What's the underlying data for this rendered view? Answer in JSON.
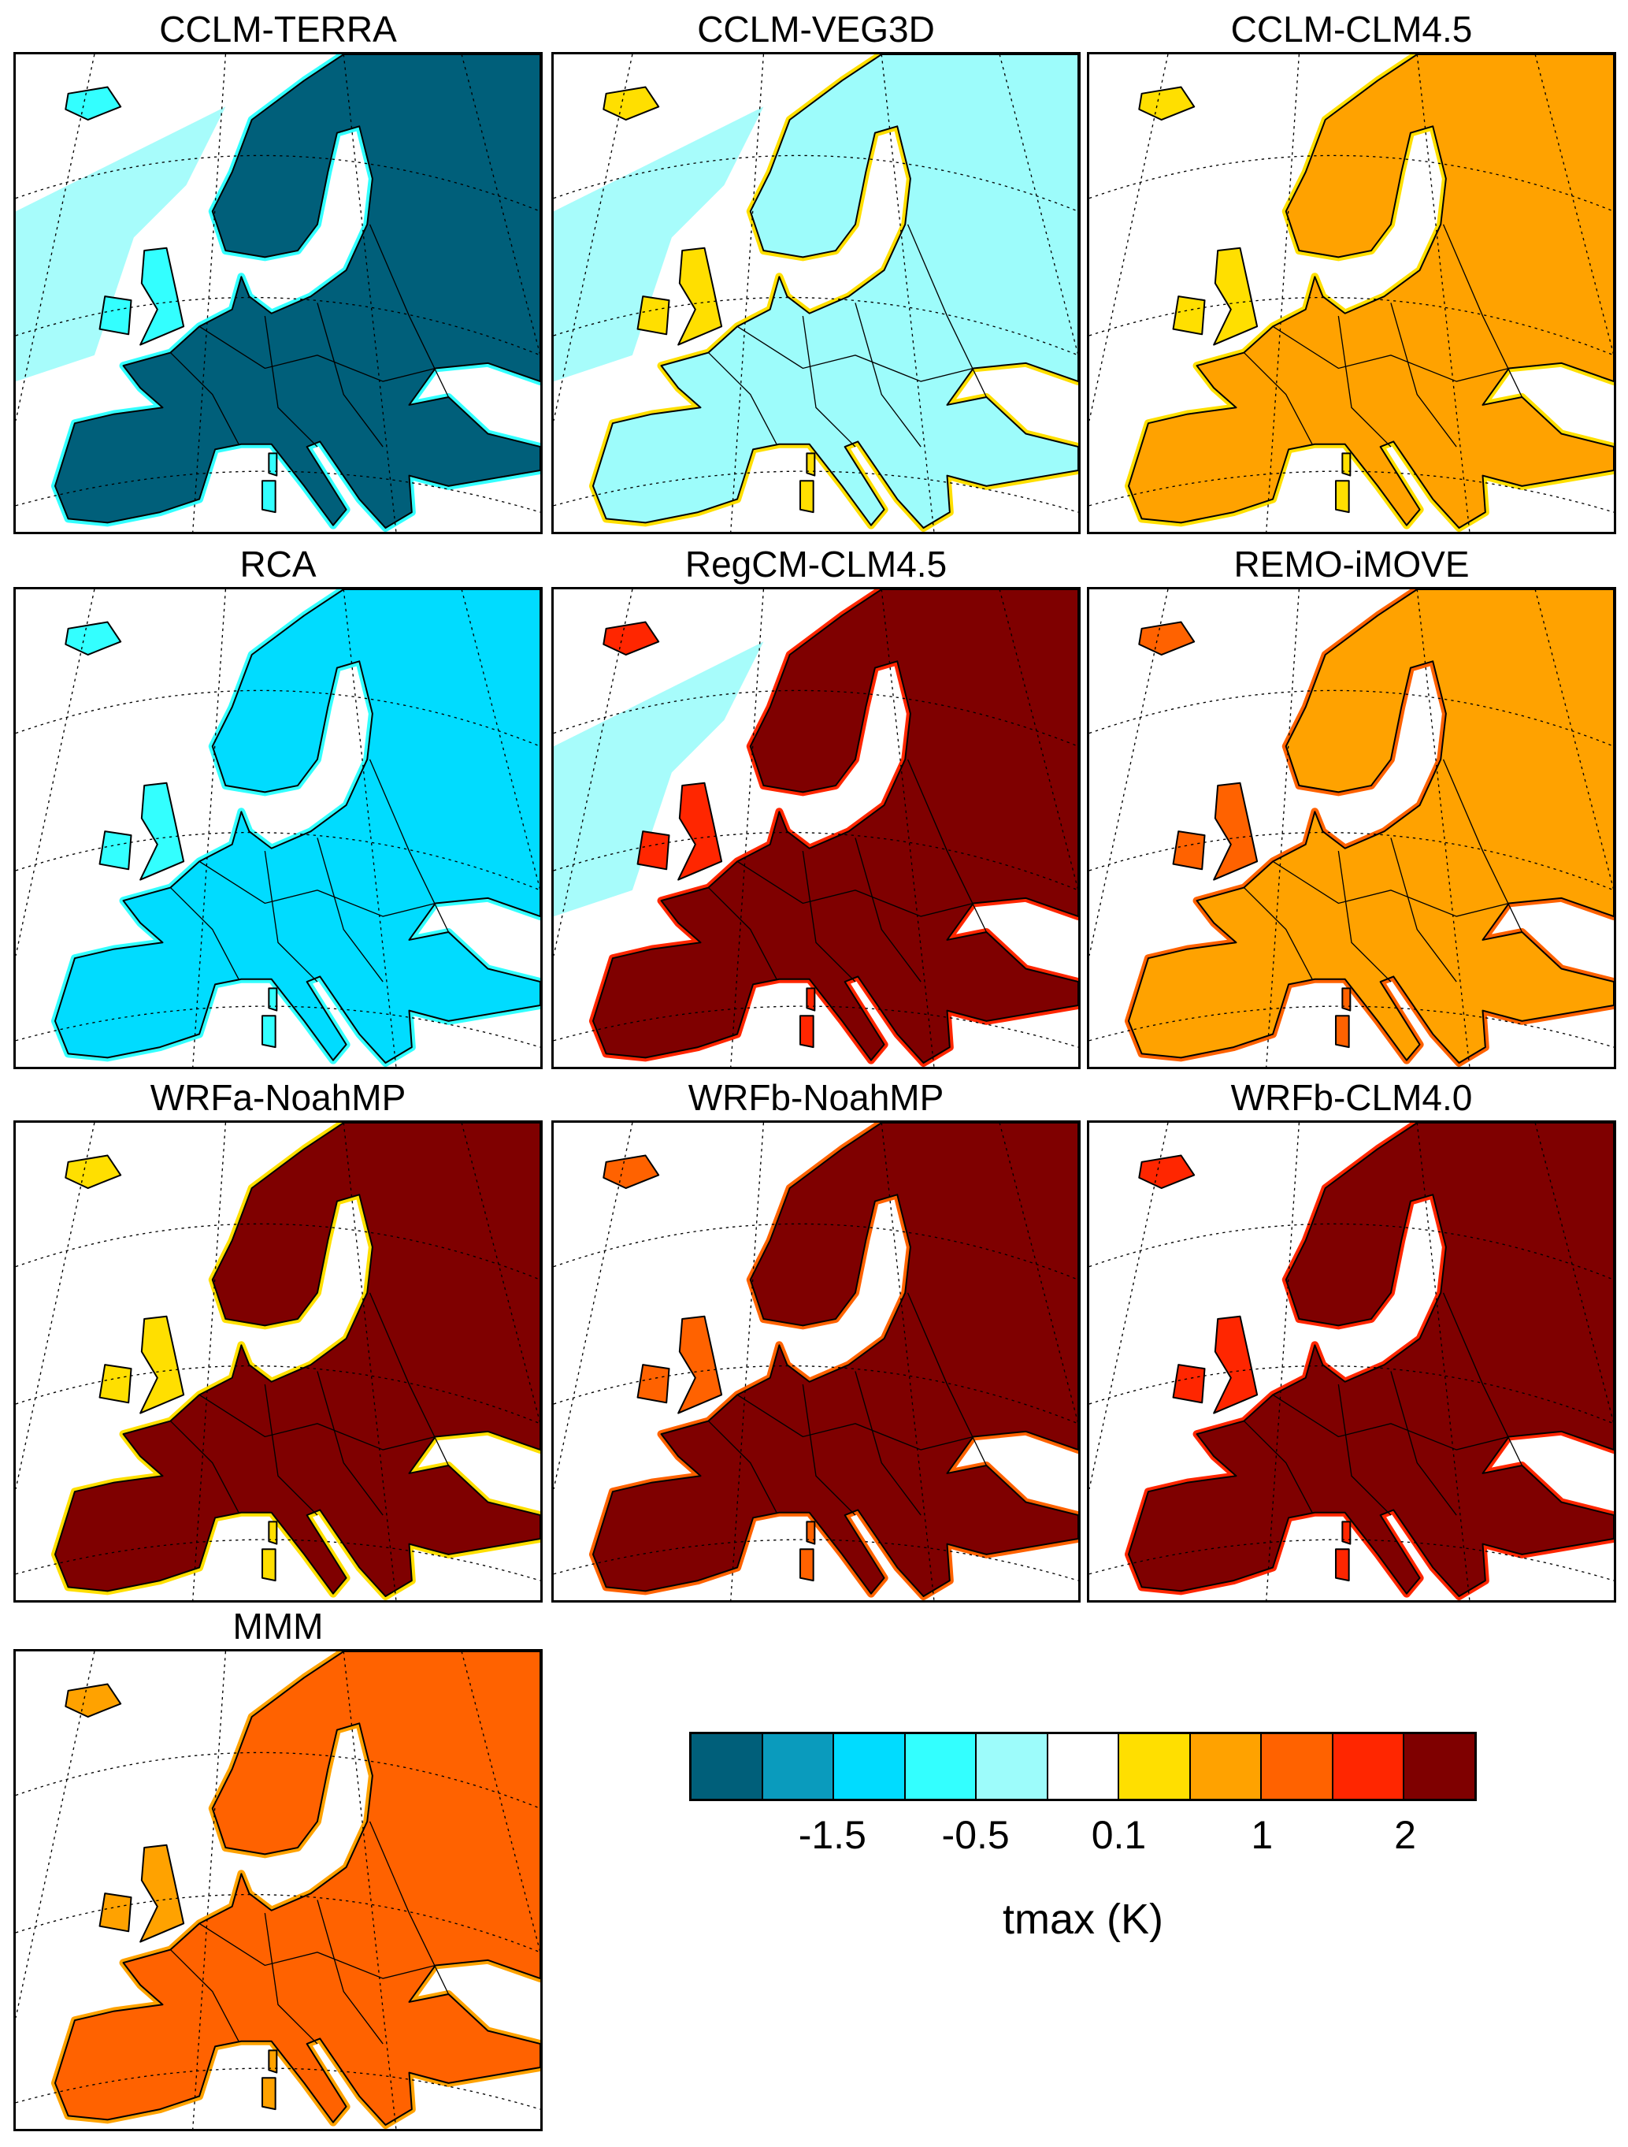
{
  "chart_data": {
    "type": "heatmap",
    "title": "",
    "colorbar": {
      "label": "tmax (K)",
      "colors": [
        "#005f7a",
        "#0a9bbd",
        "#00dcff",
        "#33ffff",
        "#9dfcfb",
        "#ffffff",
        "#ffdf00",
        "#ffa200",
        "#ff6200",
        "#ff2600",
        "#7f0000"
      ],
      "tick_labels": [
        "-1.5",
        "-0.5",
        "0.1",
        "1",
        "2"
      ],
      "tick_positions_after_class": [
        2,
        4,
        6,
        8,
        10
      ]
    },
    "panels": [
      {
        "title": "CCLM-TERRA",
        "land_level": 0,
        "edge_level": 3,
        "sea_level": 4
      },
      {
        "title": "CCLM-VEG3D",
        "land_level": 4,
        "edge_level": 6,
        "sea_level": 4
      },
      {
        "title": "CCLM-CLM4.5",
        "land_level": 7,
        "edge_level": 6,
        "sea_level": 5
      },
      {
        "title": "RCA",
        "land_level": 2,
        "edge_level": 3,
        "sea_level": 5
      },
      {
        "title": "RegCM-CLM4.5",
        "land_level": 10,
        "edge_level": 9,
        "sea_level": 4
      },
      {
        "title": "REMO-iMOVE",
        "land_level": 7,
        "edge_level": 8,
        "sea_level": 5
      },
      {
        "title": "WRFa-NoahMP",
        "land_level": 10,
        "edge_level": 6,
        "sea_level": 5
      },
      {
        "title": "WRFb-NoahMP",
        "land_level": 10,
        "edge_level": 8,
        "sea_level": 5
      },
      {
        "title": "WRFb-CLM4.0",
        "land_level": 10,
        "edge_level": 9,
        "sea_level": 5
      },
      {
        "title": "MMM",
        "land_level": 8,
        "edge_level": 7,
        "sea_level": 5
      }
    ]
  }
}
